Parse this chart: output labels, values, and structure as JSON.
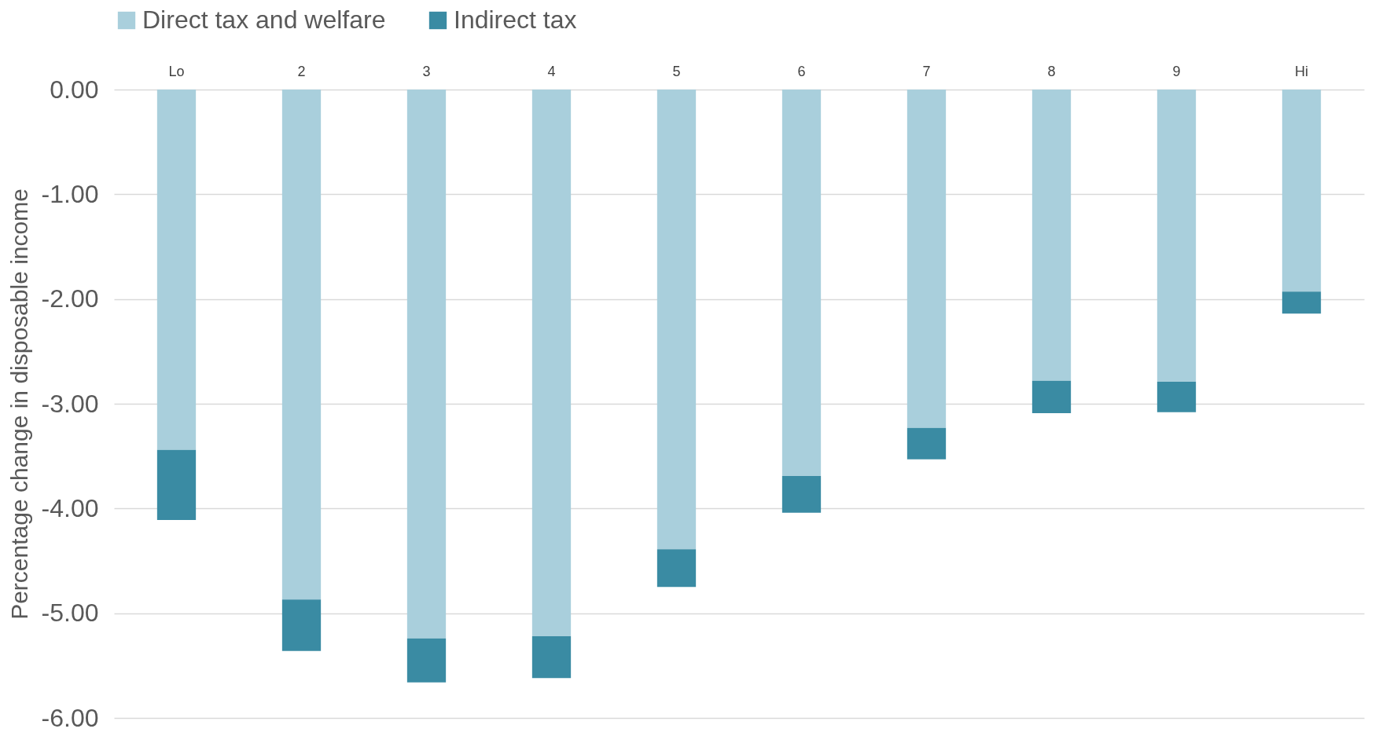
{
  "chart_data": {
    "type": "bar",
    "stacked": true,
    "ylabel": "Percentage change in disposable income",
    "categories": [
      "Lo",
      "2",
      "3",
      "4",
      "5",
      "6",
      "7",
      "8",
      "9",
      "Hi"
    ],
    "series": [
      {
        "name": "Direct tax and welfare",
        "color": "#a9cfdc",
        "values": [
          -3.44,
          -4.87,
          -5.24,
          -5.22,
          -4.39,
          -3.69,
          -3.23,
          -2.78,
          -2.79,
          -1.93
        ]
      },
      {
        "name": "Indirect tax",
        "color": "#3a8ba3",
        "values": [
          -0.67,
          -0.49,
          -0.42,
          -0.4,
          -0.36,
          -0.35,
          -0.3,
          -0.31,
          -0.29,
          -0.21
        ]
      }
    ],
    "ylim": [
      -6,
      0
    ],
    "yticks": [
      {
        "value": -6,
        "label": "-6.00"
      },
      {
        "value": -5,
        "label": "-5.00"
      },
      {
        "value": -4,
        "label": "-4.00"
      },
      {
        "value": -3,
        "label": "-3.00"
      },
      {
        "value": -2,
        "label": "-2.00"
      },
      {
        "value": -1,
        "label": "-1.00"
      },
      {
        "value": 0,
        "label": "0.00"
      }
    ],
    "grid": "y",
    "legend": "top"
  }
}
